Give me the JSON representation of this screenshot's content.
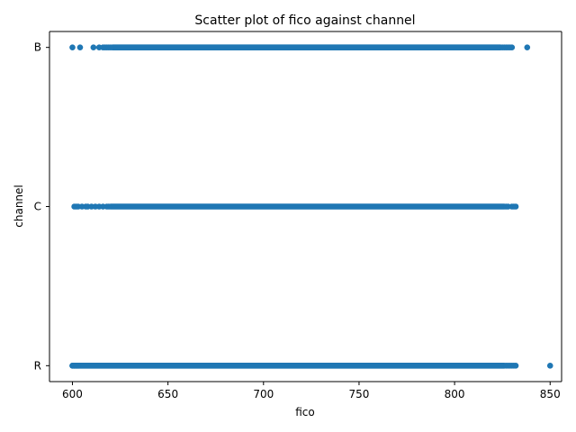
{
  "chart_data": {
    "type": "scatter",
    "title": "Scatter plot of fico against channel",
    "xlabel": "fico",
    "ylabel": "channel",
    "xlim": [
      588,
      856
    ],
    "x_ticks": [
      600,
      650,
      700,
      750,
      800,
      850
    ],
    "categories": [
      "R",
      "C",
      "B"
    ],
    "grid": false,
    "marker_color": "#1f77b4",
    "series": [
      {
        "name": "B",
        "dense_range": [
          621,
          824
        ],
        "points": [
          600,
          604,
          611,
          614,
          616,
          617,
          618,
          619,
          620,
          825,
          826,
          827,
          828,
          829,
          830,
          838
        ]
      },
      {
        "name": "C",
        "dense_range": [
          620,
          826
        ],
        "points": [
          601,
          602,
          603,
          605,
          607,
          608,
          610,
          612,
          614,
          616,
          618,
          619,
          827,
          828,
          830,
          831,
          832
        ]
      },
      {
        "name": "R",
        "dense_range": [
          600,
          826
        ],
        "points": [
          600,
          601,
          602,
          603,
          827,
          828,
          829,
          830,
          831,
          832,
          850
        ]
      }
    ]
  }
}
